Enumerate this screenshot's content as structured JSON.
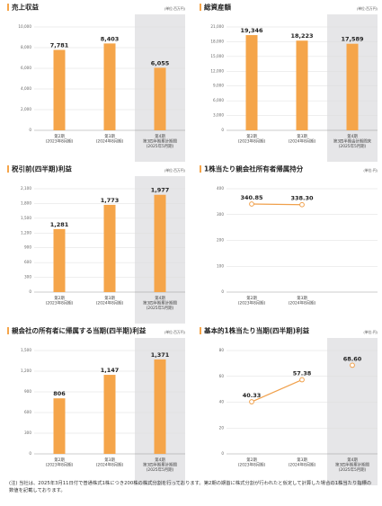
{
  "chart_data": [
    {
      "type": "bar",
      "title": "売上収益",
      "unit": "(単位:百万円)",
      "categories": [
        "第2期\n(2023年8月期)",
        "第3期\n(2024年8月期)",
        "第4期\n第3四半期累計期間\n(2025年5月期)"
      ],
      "values": [
        7781,
        8403,
        6055
      ],
      "value_labels": [
        "7,781",
        "8,403",
        "6,055"
      ],
      "color": "#f5a54a",
      "ylim": [
        0,
        10000
      ],
      "yticks": [
        0,
        {
          "value": 2000,
          "label": "2,000"
        },
        {
          "value": 4000,
          "label": "4,000"
        },
        {
          "value": 6000,
          "label": "6,000"
        },
        {
          "value": 8000,
          "label": "8,000"
        },
        {
          "value": 10000,
          "label": "10,000"
        }
      ],
      "grid": true,
      "shaded_index": 2
    },
    {
      "type": "bar",
      "title": "総資産額",
      "unit": "(単位:百万円)",
      "categories": [
        "第2期\n(2023年8月期)",
        "第3期\n(2024年8月期)",
        "第4期\n第3四半期会計期間末\n(2025年5月期)"
      ],
      "values": [
        19346,
        18223,
        17589
      ],
      "value_labels": [
        "19,346",
        "18,223",
        "17,589"
      ],
      "color": "#f5a54a",
      "ylim": [
        0,
        21000
      ],
      "yticks": [
        0,
        {
          "value": 3000,
          "label": "3,000"
        },
        {
          "value": 6000,
          "label": "6,000"
        },
        {
          "value": 9000,
          "label": "9,000"
        },
        {
          "value": 12000,
          "label": "12,000"
        },
        {
          "value": 15000,
          "label": "15,000"
        },
        {
          "value": 18000,
          "label": "18,000"
        },
        {
          "value": 21000,
          "label": "21,000"
        }
      ],
      "grid": true,
      "shaded_index": 2
    },
    {
      "type": "bar",
      "title": "税引前(四半期)利益",
      "unit": "(単位:百万円)",
      "categories": [
        "第2期\n(2023年8月期)",
        "第3期\n(2024年8月期)",
        "第4期\n第3四半期累計期間\n(2025年5月期)"
      ],
      "values": [
        1281,
        1773,
        1977
      ],
      "value_labels": [
        "1,281",
        "1,773",
        "1,977"
      ],
      "color": "#f5a54a",
      "ylim": [
        0,
        2100
      ],
      "yticks": [
        0,
        300,
        600,
        900,
        {
          "value": 1200,
          "label": "1,200"
        },
        {
          "value": 1500,
          "label": "1,500"
        },
        {
          "value": 1800,
          "label": "1,800"
        },
        {
          "value": 2100,
          "label": "2,100"
        }
      ],
      "grid": true,
      "shaded_index": 2
    },
    {
      "type": "line",
      "title": "1株当たり親会社所有者帰属持分",
      "unit": "(単位:円)",
      "categories": [
        "第2期\n(2023年8月期)",
        "第3期\n(2024年8月期)",
        null
      ],
      "series": [
        {
          "color": "#f0a04b",
          "values": [
            340.85,
            338.3,
            null
          ],
          "value_labels": [
            "340.85",
            "338.30",
            null
          ]
        }
      ],
      "ylim": [
        0,
        400
      ],
      "yticks": [
        0,
        100,
        200,
        300,
        400
      ],
      "grid": true
    },
    {
      "type": "bar",
      "title": "親会社の所有者に帰属する当期(四半期)利益",
      "unit": "(単位:百万円)",
      "categories": [
        "第2期\n(2023年8月期)",
        "第3期\n(2024年8月期)",
        "第4期\n第3四半期累計期間\n(2025年5月期)"
      ],
      "values": [
        806,
        1147,
        1371
      ],
      "value_labels": [
        "806",
        "1,147",
        "1,371"
      ],
      "color": "#f5a54a",
      "ylim": [
        0,
        1500
      ],
      "yticks": [
        0,
        300,
        600,
        900,
        {
          "value": 1200,
          "label": "1,200"
        },
        {
          "value": 1500,
          "label": "1,500"
        }
      ],
      "grid": true,
      "shaded_index": 2
    },
    {
      "type": "line",
      "title": "基本的1株当たり当期(四半期)利益",
      "unit": "(単位:円)",
      "categories": [
        "第2期\n(2023年8月期)",
        "第3期\n(2024年8月期)",
        "第4期\n第3四半期累計期間\n(2025年5月期)"
      ],
      "series": [
        {
          "color": "#f0a04b",
          "values": [
            40.33,
            57.38,
            null
          ],
          "value_labels": [
            "40.33",
            "57.38",
            null
          ]
        },
        {
          "color": "#f0a04b",
          "values": [
            null,
            null,
            68.6
          ],
          "value_labels": [
            null,
            null,
            "68.60"
          ]
        }
      ],
      "ylim": [
        0,
        80
      ],
      "yticks": [
        0,
        20,
        40,
        60,
        80
      ],
      "grid": true,
      "shaded_index": 2
    }
  ],
  "footnote": "(注) 当社は、2025年3月11日付で普通株式1株につき200株の株式分割を行っております。第2期の期首に株式分割が行われたと仮定して計算した場合の1株当たり指標の数値を記載しております。"
}
